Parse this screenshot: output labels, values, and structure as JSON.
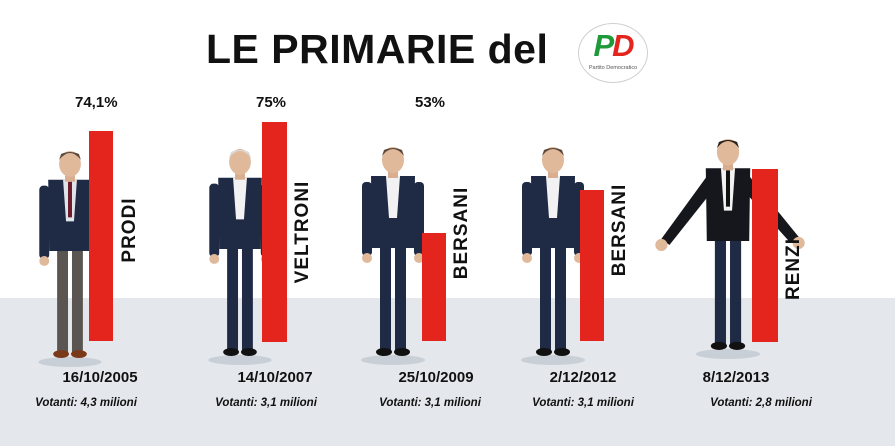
{
  "title": {
    "text": "LE PRIMARIE del",
    "logo_mark_left": "P",
    "logo_mark_right": "D",
    "logo_caption": "Partito Democratico",
    "logo_name": "pd-logo"
  },
  "chart_data": {
    "type": "bar",
    "title": "LE PRIMARIE del",
    "categories": [
      "16/10/2005",
      "14/10/2007",
      "25/10/2009",
      "2/12/2012",
      "8/12/2013"
    ],
    "candidates": [
      "PRODI",
      "VELTRONI",
      "BERSANI",
      "BERSANI",
      "RENZI"
    ],
    "values": [
      74.1,
      75,
      53,
      null,
      null
    ],
    "value_labels": [
      "74,1%",
      "75%",
      "53%",
      "",
      ""
    ],
    "voters": [
      "Votanti: 4,3 milioni",
      "Votanti: 3,1 milioni",
      "Votanti: 3,1 milioni",
      "Votanti: 3,1 milioni",
      "Votanti: 2,8 milioni"
    ],
    "bar_color": "#e3251d"
  },
  "colors": {
    "bar": "#e3251d",
    "floor": "#e4e8ec",
    "suit": "#1f2a44",
    "shirt": "#f2f2f2"
  }
}
